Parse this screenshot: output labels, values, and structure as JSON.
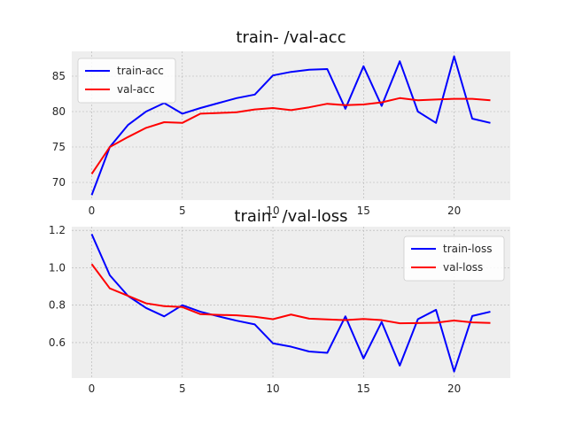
{
  "chart_data": [
    {
      "type": "line",
      "title": "train- /val-acc",
      "xlabel": "",
      "ylabel": "",
      "xlim": [
        -1.1,
        23.1
      ],
      "ylim": [
        67.5,
        88.5
      ],
      "xticks": [
        0,
        5,
        10,
        15,
        20
      ],
      "yticks": [
        70,
        75,
        80,
        85
      ],
      "grid": true,
      "legend_position": "top-left",
      "x": [
        0,
        1,
        2,
        3,
        4,
        5,
        6,
        7,
        8,
        9,
        10,
        11,
        12,
        13,
        14,
        15,
        16,
        17,
        18,
        19,
        20,
        21,
        22
      ],
      "series": [
        {
          "name": "train-acc",
          "color": "#0000ff",
          "values": [
            68.2,
            75.0,
            78.1,
            80.0,
            81.2,
            79.7,
            80.5,
            81.2,
            81.9,
            82.4,
            85.1,
            85.6,
            85.9,
            86.0,
            80.4,
            86.4,
            80.8,
            87.1,
            80.0,
            78.4,
            87.8,
            79.0,
            78.4
          ]
        },
        {
          "name": "val-acc",
          "color": "#ff0000",
          "values": [
            71.2,
            75.0,
            76.4,
            77.7,
            78.5,
            78.4,
            79.7,
            79.8,
            79.9,
            80.3,
            80.5,
            80.2,
            80.6,
            81.1,
            80.9,
            81.0,
            81.3,
            81.9,
            81.6,
            81.7,
            81.8,
            81.8,
            81.6
          ]
        }
      ]
    },
    {
      "type": "line",
      "title": "train- /val-loss",
      "xlabel": "",
      "ylabel": "",
      "xlim": [
        -1.1,
        23.1
      ],
      "ylim": [
        0.41,
        1.22
      ],
      "xticks": [
        0,
        5,
        10,
        15,
        20
      ],
      "yticks": [
        0.6,
        0.8,
        1.0,
        1.2
      ],
      "grid": true,
      "legend_position": "top-right",
      "x": [
        0,
        1,
        2,
        3,
        4,
        5,
        6,
        7,
        8,
        9,
        10,
        11,
        12,
        13,
        14,
        15,
        16,
        17,
        18,
        19,
        20,
        21,
        22
      ],
      "series": [
        {
          "name": "train-loss",
          "color": "#0000ff",
          "values": [
            1.18,
            0.96,
            0.85,
            0.785,
            0.74,
            0.8,
            0.765,
            0.74,
            0.717,
            0.697,
            0.596,
            0.578,
            0.552,
            0.545,
            0.74,
            0.515,
            0.71,
            0.477,
            0.725,
            0.775,
            0.445,
            0.742,
            0.765
          ]
        },
        {
          "name": "val-loss",
          "color": "#ff0000",
          "values": [
            1.02,
            0.89,
            0.85,
            0.81,
            0.795,
            0.79,
            0.752,
            0.748,
            0.746,
            0.738,
            0.725,
            0.75,
            0.728,
            0.724,
            0.72,
            0.726,
            0.72,
            0.703,
            0.704,
            0.706,
            0.718,
            0.708,
            0.705
          ]
        }
      ]
    }
  ]
}
